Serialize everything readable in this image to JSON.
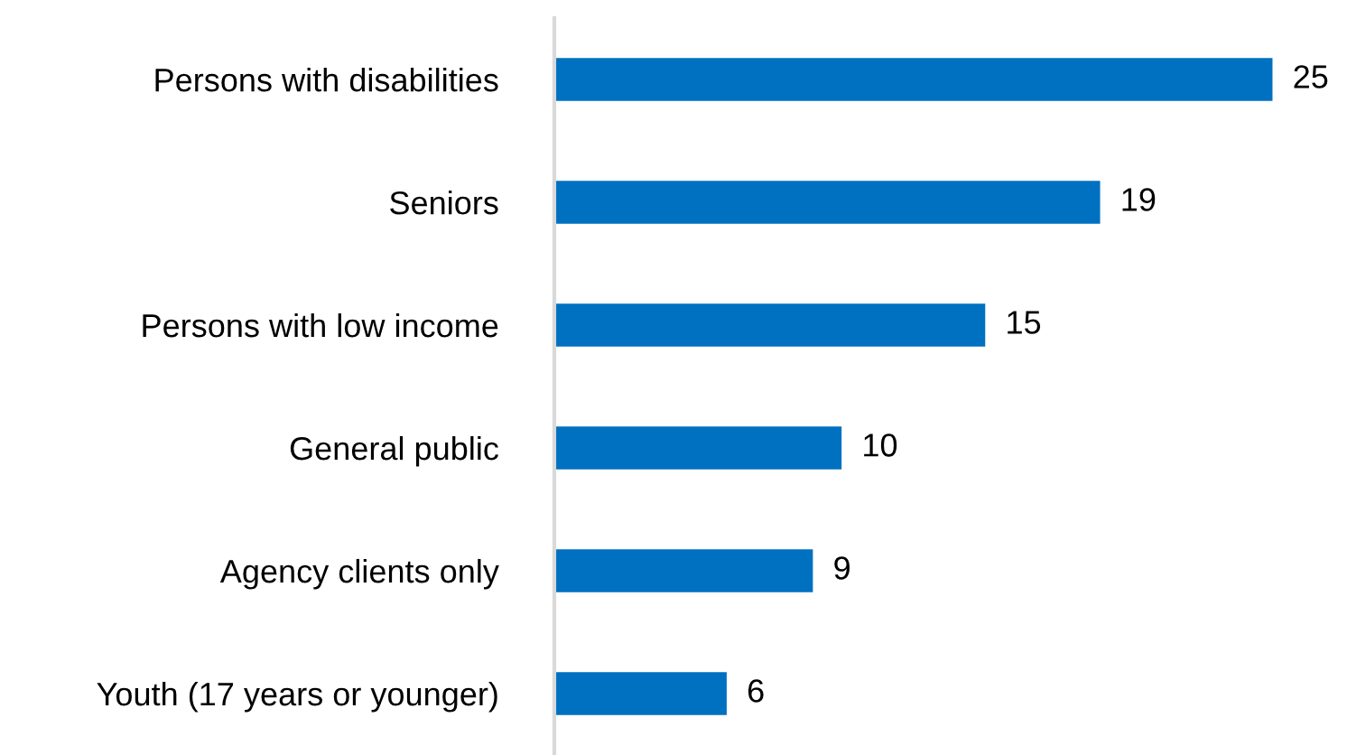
{
  "chart_data": {
    "type": "bar",
    "orientation": "horizontal",
    "categories": [
      "Persons with disabilities",
      "Seniors",
      "Persons with low income",
      "General public",
      "Agency clients only",
      "Youth (17 years or younger)"
    ],
    "values": [
      25,
      19,
      15,
      10,
      9,
      6
    ],
    "color": "#0070c0",
    "data_labels": true,
    "grid": false,
    "legend": false
  }
}
